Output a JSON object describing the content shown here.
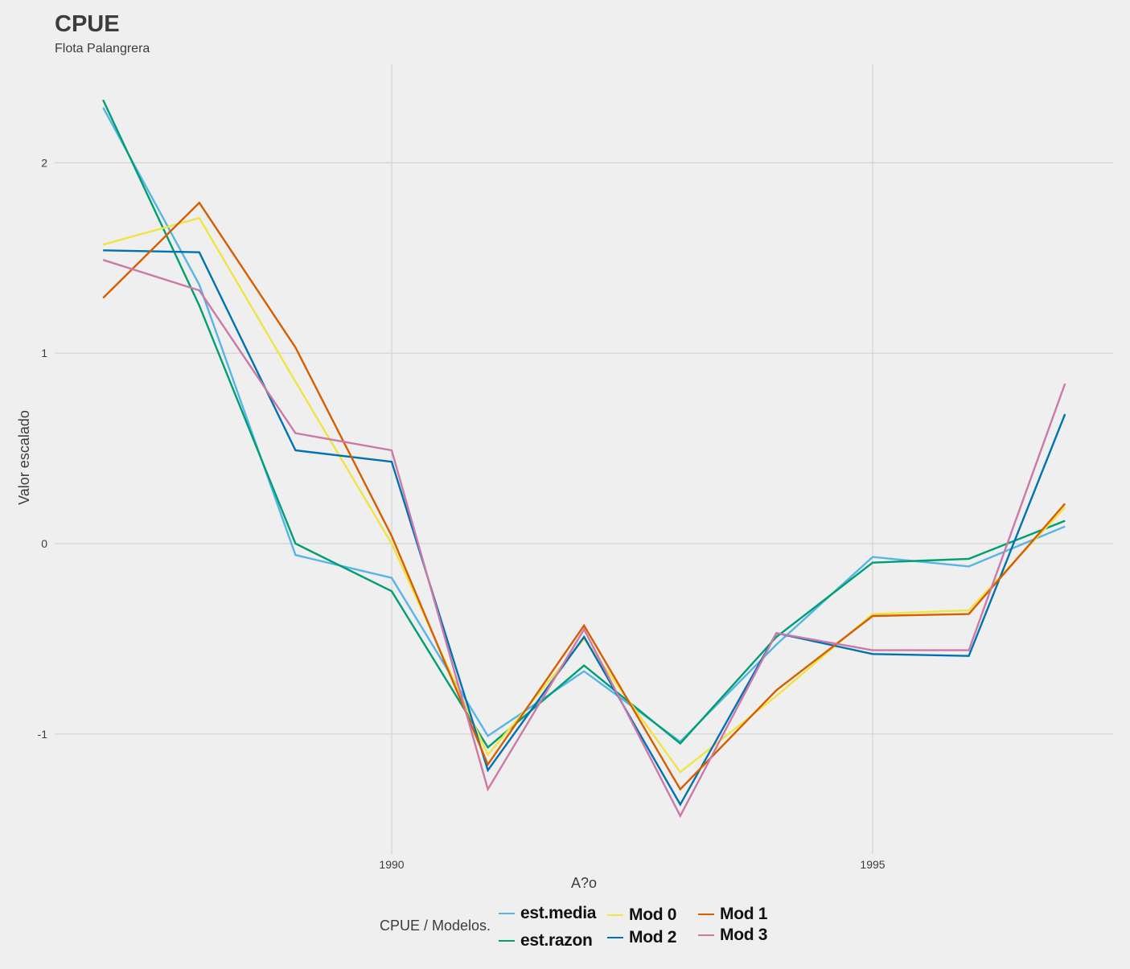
{
  "title": "CPUE",
  "subtitle": "Flota Palangrera",
  "legend_title": "CPUE / Modelos.",
  "chart_data": {
    "type": "line",
    "title": "CPUE",
    "subtitle": "Flota Palangrera",
    "xlabel": "A?o",
    "ylabel": "Valor escalado",
    "xlim": [
      1987,
      1998
    ],
    "ylim": [
      -1.65,
      2.5
    ],
    "x_ticks": [
      1990,
      1995
    ],
    "y_ticks": [
      2,
      1,
      0,
      -1
    ],
    "x_tick_labels": [
      "1990",
      "1995"
    ],
    "y_tick_labels": [
      "2",
      "1",
      "0",
      "-1"
    ],
    "grid": true,
    "legend_position": "bottom",
    "x": [
      1987,
      1988,
      1989,
      1990,
      1991,
      1992,
      1993,
      1994,
      1995,
      1996,
      1997
    ],
    "series": [
      {
        "name": "est.media",
        "color": "#56B4E9",
        "values": [
          2.29,
          1.36,
          -0.06,
          -0.18,
          -1.01,
          -0.67,
          -1.04,
          -0.53,
          -0.07,
          -0.12,
          0.09
        ]
      },
      {
        "name": "est.razon",
        "color": "#009E73",
        "values": [
          2.33,
          1.25,
          0.0,
          -0.25,
          -1.07,
          -0.64,
          -1.05,
          -0.49,
          -0.1,
          -0.08,
          0.12
        ]
      },
      {
        "name": "Mod 0",
        "color": "#F0E442",
        "values": [
          1.57,
          1.71,
          0.85,
          0.0,
          -1.11,
          -0.5,
          -1.2,
          -0.8,
          -0.37,
          -0.35,
          0.19
        ]
      },
      {
        "name": "Mod 2",
        "color": "#0072B2",
        "values": [
          1.54,
          1.53,
          0.49,
          0.43,
          -1.19,
          -0.49,
          -1.37,
          -0.47,
          -0.58,
          -0.59,
          0.68
        ]
      },
      {
        "name": "Mod 1",
        "color": "#D55E00",
        "values": [
          1.29,
          1.79,
          1.03,
          0.04,
          -1.16,
          -0.43,
          -1.29,
          -0.77,
          -0.38,
          -0.37,
          0.21
        ]
      },
      {
        "name": "Mod 3",
        "color": "#CC79A7",
        "values": [
          1.49,
          1.33,
          0.58,
          0.49,
          -1.29,
          -0.45,
          -1.43,
          -0.47,
          -0.56,
          -0.56,
          0.84
        ]
      }
    ]
  }
}
